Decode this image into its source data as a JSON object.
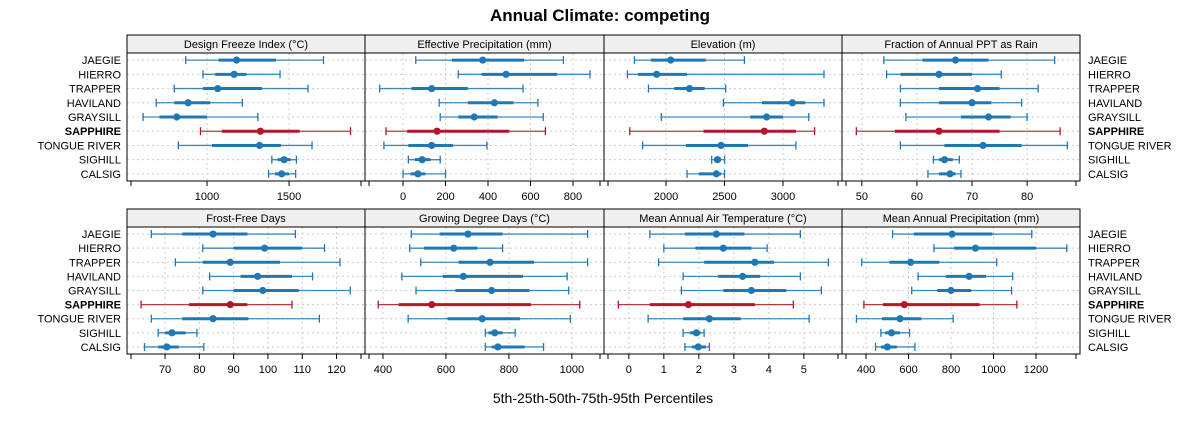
{
  "chart_data": {
    "type": "dotplot-percentile-intervals",
    "title": "Annual Climate: competing",
    "xlabel": "5th-25th-50th-75th-95th Percentiles",
    "ylabel": "",
    "sites": [
      "JAEGIE",
      "HIERRO",
      "TRAPPER",
      "HAVILAND",
      "GRAYSILL",
      "SAPPHIRE",
      "TONGUE RIVER",
      "SIGHILL",
      "CALSIG"
    ],
    "highlight_site": "SAPPHIRE",
    "colors": {
      "default": "#1f78b4",
      "highlight": "#b2182b",
      "strip_bg": "#f0f0f0",
      "grid": "#cccccc"
    },
    "percentile_labels": [
      "p5",
      "p25",
      "p50",
      "p75",
      "p95"
    ],
    "grid": true,
    "layout": "2 rows x 4 columns",
    "panels": [
      {
        "name": "Design Freeze Index (°C)",
        "xlim": [
          512,
          1963
        ],
        "ticks": [
          1000,
          1500
        ],
        "values": {
          "JAEGIE": [
            870,
            1070,
            1180,
            1420,
            1710
          ],
          "HIERRO": [
            975,
            1050,
            1165,
            1240,
            1445
          ],
          "TRAPPER": [
            800,
            975,
            1065,
            1335,
            1615
          ],
          "HAVILAND": [
            690,
            800,
            885,
            1020,
            1215
          ],
          "GRAYSILL": [
            610,
            710,
            815,
            1000,
            1310
          ],
          "SAPPHIRE": [
            960,
            1090,
            1325,
            1565,
            1875
          ],
          "TONGUE RIVER": [
            825,
            1030,
            1320,
            1450,
            1640
          ],
          "SIGHILL": [
            1395,
            1430,
            1470,
            1510,
            1545
          ],
          "CALSIG": [
            1375,
            1415,
            1455,
            1500,
            1540
          ]
        }
      },
      {
        "name": "Effective Precipitation (mm)",
        "xlim": [
          -179,
          946
        ],
        "ticks": [
          0,
          200,
          400,
          600,
          800
        ],
        "values": {
          "JAEGIE": [
            60,
            230,
            375,
            570,
            755
          ],
          "HIERRO": [
            260,
            370,
            485,
            725,
            880
          ],
          "TRAPPER": [
            -110,
            40,
            135,
            305,
            565
          ],
          "HAVILAND": [
            170,
            305,
            430,
            520,
            635
          ],
          "GRAYSILL": [
            175,
            260,
            335,
            445,
            660
          ],
          "SAPPHIRE": [
            -80,
            20,
            160,
            500,
            670
          ],
          "TONGUE RIVER": [
            -90,
            25,
            135,
            235,
            395
          ],
          "SIGHILL": [
            25,
            55,
            90,
            130,
            175
          ],
          "CALSIG": [
            0,
            35,
            70,
            105,
            200
          ]
        }
      },
      {
        "name": "Elevation (m)",
        "xlim": [
          1470,
          3504
        ],
        "ticks": [
          2000,
          2500,
          3000
        ],
        "values": {
          "JAEGIE": [
            1730,
            1870,
            2040,
            2340,
            2670
          ],
          "HIERRO": [
            1670,
            1760,
            1920,
            2180,
            3350
          ],
          "TRAPPER": [
            1850,
            2070,
            2200,
            2330,
            2510
          ],
          "HAVILAND": [
            2490,
            2820,
            3080,
            3190,
            3350
          ],
          "GRAYSILL": [
            1960,
            2720,
            2860,
            3000,
            3220
          ],
          "SAPPHIRE": [
            1690,
            2320,
            2840,
            3110,
            3270
          ],
          "TONGUE RIVER": [
            1800,
            2170,
            2470,
            2700,
            3110
          ],
          "SIGHILL": [
            2390,
            2410,
            2440,
            2470,
            2500
          ],
          "CALSIG": [
            2180,
            2280,
            2430,
            2470,
            2500
          ]
        }
      },
      {
        "name": "Fraction of Annual PPT as Rain",
        "xlim": [
          46.4,
          89.6
        ],
        "ticks": [
          50,
          60,
          70,
          80
        ],
        "values": {
          "JAEGIE": [
            54,
            61,
            67,
            73,
            85
          ],
          "HIERRO": [
            54.5,
            57,
            64,
            70,
            75.3
          ],
          "TRAPPER": [
            57,
            64,
            71,
            75,
            82
          ],
          "HAVILAND": [
            57,
            64,
            70,
            73.5,
            79
          ],
          "GRAYSILL": [
            58,
            68,
            73,
            77,
            80
          ],
          "SAPPHIRE": [
            49,
            56,
            64,
            75,
            86
          ],
          "TONGUE RIVER": [
            57,
            65,
            72,
            79,
            87.3
          ],
          "SIGHILL": [
            63,
            64,
            65,
            66.5,
            67.7
          ],
          "CALSIG": [
            62,
            64,
            66,
            67,
            68
          ]
        }
      },
      {
        "name": "Frost-Free Days",
        "xlim": [
          58.9,
          128.3
        ],
        "ticks": [
          70,
          80,
          90,
          100,
          110,
          120
        ],
        "values": {
          "JAEGIE": [
            66,
            75,
            84,
            94,
            108
          ],
          "HIERRO": [
            81,
            90,
            99,
            110,
            116.5
          ],
          "TRAPPER": [
            73,
            81,
            89,
            103.5,
            121
          ],
          "HAVILAND": [
            83,
            92,
            97,
            107,
            113
          ],
          "GRAYSILL": [
            81,
            90,
            98.5,
            109,
            124
          ],
          "SAPPHIRE": [
            63,
            77,
            89,
            94,
            107
          ],
          "TONGUE RIVER": [
            66,
            75,
            84,
            94.3,
            115
          ],
          "SIGHILL": [
            68,
            70,
            72,
            76,
            79.3
          ],
          "CALSIG": [
            64,
            68,
            70.5,
            74,
            81.3
          ]
        }
      },
      {
        "name": "Growing Degree Days (°C)",
        "xlim": [
          343,
          1102
        ],
        "ticks": [
          400,
          600,
          800,
          1000
        ],
        "values": {
          "JAEGIE": [
            490,
            580,
            670,
            780,
            1050
          ],
          "HIERRO": [
            485,
            530,
            625,
            700,
            780
          ],
          "TRAPPER": [
            520,
            640,
            740,
            880,
            1050
          ],
          "HAVILAND": [
            460,
            590,
            655,
            845,
            985
          ],
          "GRAYSILL": [
            505,
            630,
            745,
            865,
            990
          ],
          "SAPPHIRE": [
            385,
            450,
            555,
            870,
            1025
          ],
          "TONGUE RIVER": [
            480,
            605,
            715,
            835,
            995
          ],
          "SIGHILL": [
            725,
            735,
            755,
            780,
            820
          ],
          "CALSIG": [
            725,
            745,
            765,
            850,
            910
          ]
        }
      },
      {
        "name": "Mean Annual Air Temperature (°C)",
        "xlim": [
          -0.71,
          6.09
        ],
        "ticks": [
          0,
          1,
          2,
          3,
          4,
          5
        ],
        "values": {
          "JAEGIE": [
            0.6,
            1.6,
            2.5,
            3.3,
            4.9
          ],
          "HIERRO": [
            1.0,
            1.9,
            2.7,
            3.5,
            3.95
          ],
          "TRAPPER": [
            0.85,
            2.15,
            3.6,
            4.15,
            5.7
          ],
          "HAVILAND": [
            1.55,
            2.55,
            3.25,
            3.75,
            4.9
          ],
          "GRAYSILL": [
            1.5,
            2.7,
            3.5,
            4.5,
            5.5
          ],
          "SAPPHIRE": [
            -0.3,
            0.6,
            1.7,
            3.6,
            4.7
          ],
          "TONGUE RIVER": [
            0.55,
            1.55,
            2.3,
            3.2,
            5.15
          ],
          "SIGHILL": [
            1.55,
            1.75,
            1.93,
            2.05,
            2.15
          ],
          "CALSIG": [
            1.6,
            1.8,
            1.98,
            2.2,
            2.3
          ]
        }
      },
      {
        "name": "Mean Annual Precipitation (mm)",
        "xlim": [
          287,
          1407
        ],
        "ticks": [
          400,
          600,
          800,
          1000,
          1200
        ],
        "values": {
          "JAEGIE": [
            525,
            625,
            805,
            995,
            1180
          ],
          "HIERRO": [
            720,
            815,
            915,
            1200,
            1345
          ],
          "TRAPPER": [
            380,
            510,
            610,
            745,
            1015
          ],
          "HAVILAND": [
            645,
            775,
            885,
            965,
            1090
          ],
          "GRAYSILL": [
            615,
            735,
            800,
            895,
            1085
          ],
          "SAPPHIRE": [
            390,
            480,
            580,
            935,
            1110
          ],
          "TONGUE RIVER": [
            355,
            475,
            560,
            660,
            810
          ],
          "SIGHILL": [
            470,
            490,
            520,
            560,
            605
          ],
          "CALSIG": [
            445,
            470,
            500,
            545,
            630
          ]
        }
      }
    ]
  }
}
